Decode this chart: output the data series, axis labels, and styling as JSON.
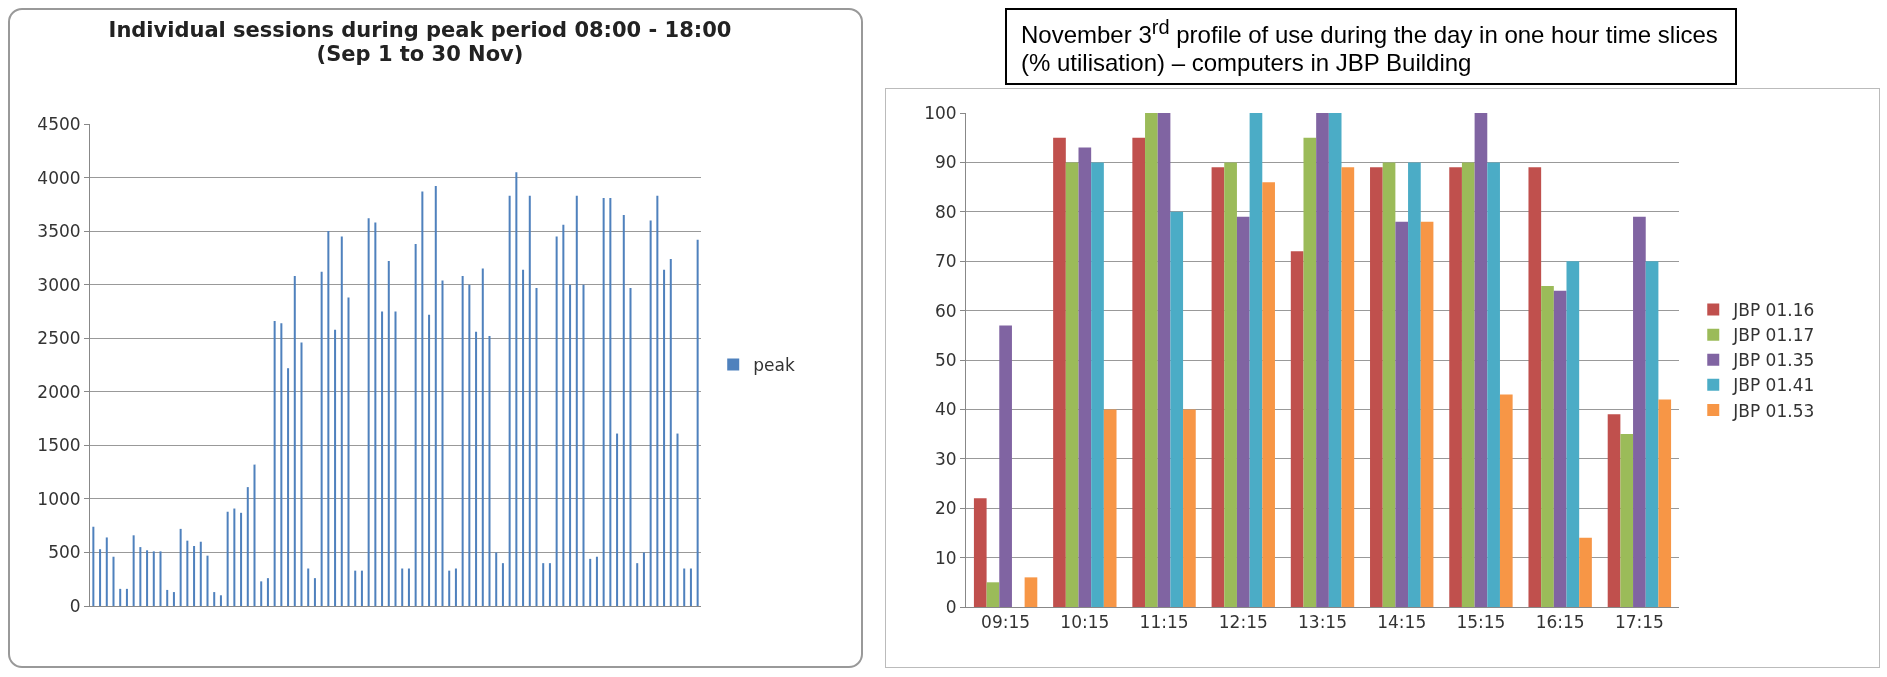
{
  "chart_data": [
    {
      "type": "bar",
      "title": "Individual sessions during peak period 08:00  - 18:00 (Sep 1 to 30 Nov)",
      "categories": [
        null,
        null,
        null,
        null,
        null,
        null,
        null,
        null,
        null,
        null,
        null,
        null,
        null,
        null,
        null,
        null,
        null,
        null,
        null,
        null,
        null,
        null,
        null,
        null,
        null,
        null,
        null,
        null,
        null,
        null,
        null,
        null,
        null,
        null,
        null,
        null,
        null,
        null,
        null,
        null,
        null,
        null,
        null,
        null,
        null,
        null,
        null,
        null,
        null,
        null,
        null,
        null,
        null,
        null,
        null,
        null,
        null,
        null,
        null,
        null,
        null,
        null,
        null,
        null,
        null,
        null,
        null,
        null,
        null,
        null,
        null,
        null,
        null,
        null,
        null,
        null,
        null,
        null,
        null,
        null,
        null,
        null,
        null,
        null,
        null,
        null,
        null,
        null,
        null,
        null,
        null
      ],
      "series": [
        {
          "name": "peak",
          "color": "#4f81bd",
          "values": [
            740,
            530,
            640,
            460,
            160,
            160,
            660,
            550,
            520,
            510,
            510,
            150,
            130,
            720,
            610,
            560,
            600,
            470,
            130,
            100,
            880,
            910,
            870,
            1110,
            1320,
            230,
            260,
            2660,
            2640,
            2220,
            3080,
            2460,
            350,
            260,
            3120,
            3500,
            2580,
            3450,
            2880,
            330,
            330,
            3620,
            3580,
            2750,
            3220,
            2750,
            350,
            350,
            3380,
            3870,
            2720,
            3920,
            3040,
            330,
            350,
            3080,
            3000,
            2560,
            3150,
            2520,
            500,
            400,
            3830,
            4050,
            3140,
            3830,
            2970,
            400,
            400,
            3450,
            3560,
            3000,
            3830,
            3000,
            440,
            460,
            3810,
            3810,
            1610,
            3650,
            2970,
            400,
            500,
            3600,
            3830,
            3140,
            3240,
            1610,
            350,
            350,
            3420
          ]
        }
      ],
      "ylim": [
        0,
        4500
      ],
      "yticks": [
        0,
        500,
        1000,
        1500,
        2000,
        2500,
        3000,
        3500,
        4000,
        4500
      ],
      "grid": "y",
      "legend": "right"
    },
    {
      "type": "bar",
      "title": "November 3$^{rd}$ profile of use during the day in one hour time slices (% utilisation) – computers in JBP Building",
      "categories": [
        "09:15",
        "10:15",
        "11:15",
        "12:15",
        "13:15",
        "14:15",
        "15:15",
        "16:15",
        "17:15"
      ],
      "series": [
        {
          "name": "JBP 01.16",
          "color": "#c0504d",
          "values": [
            22,
            95,
            95,
            89,
            72,
            89,
            89,
            89,
            39
          ]
        },
        {
          "name": "JBP 01.17",
          "color": "#9bbb59",
          "values": [
            5,
            90,
            100,
            90,
            95,
            90,
            90,
            65,
            35
          ]
        },
        {
          "name": "JBP 01.35",
          "color": "#8064a2",
          "values": [
            57,
            93,
            100,
            79,
            100,
            78,
            100,
            64,
            79
          ]
        },
        {
          "name": "JBP 01.41",
          "color": "#4bacc6",
          "values": [
            0,
            90,
            80,
            100,
            100,
            90,
            90,
            70,
            70
          ]
        },
        {
          "name": "JBP 01.53",
          "color": "#f79646",
          "values": [
            6,
            40,
            40,
            86,
            89,
            78,
            43,
            14,
            42
          ]
        }
      ],
      "ylim": [
        0,
        100
      ],
      "yticks": [
        0,
        10,
        20,
        30,
        40,
        50,
        60,
        70,
        80,
        90,
        100
      ],
      "grid": "y",
      "legend": "right"
    }
  ]
}
